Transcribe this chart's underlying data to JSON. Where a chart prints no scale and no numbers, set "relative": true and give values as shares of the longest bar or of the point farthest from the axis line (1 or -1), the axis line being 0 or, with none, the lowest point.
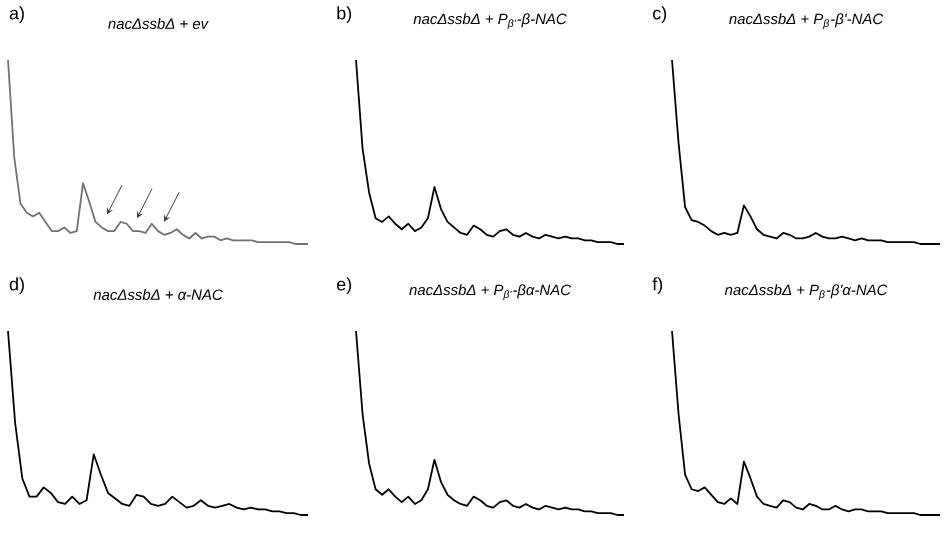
{
  "chart_data": [
    {
      "type": "line",
      "title": "nacΔssbΔ + ev",
      "annotations": [
        "a)"
      ],
      "relative": true,
      "color": "#707070",
      "categories": [
        null,
        null,
        null,
        null,
        null,
        null,
        null,
        null,
        null,
        null,
        null,
        null,
        null,
        null,
        null,
        null,
        null,
        null,
        null,
        null,
        null,
        null,
        null,
        null,
        null,
        null,
        null,
        null,
        null,
        null,
        null,
        null,
        null,
        null,
        null,
        null,
        null,
        null,
        null,
        null,
        null,
        null,
        null,
        null,
        null,
        null,
        null,
        null,
        null
      ],
      "values": [
        1.0,
        0.47,
        0.22,
        0.17,
        0.15,
        0.17,
        0.12,
        0.07,
        0.07,
        0.09,
        0.06,
        0.07,
        0.33,
        0.23,
        0.12,
        0.09,
        0.07,
        0.07,
        0.12,
        0.11,
        0.07,
        0.07,
        0.06,
        0.11,
        0.07,
        0.05,
        0.06,
        0.08,
        0.05,
        0.03,
        0.06,
        0.03,
        0.04,
        0.04,
        0.02,
        0.03,
        0.02,
        0.02,
        0.02,
        0.02,
        0.01,
        0.01,
        0.01,
        0.01,
        0.01,
        0.01,
        0.0,
        0.0,
        0.0
      ]
    },
    {
      "type": "line",
      "title": "nacΔssbΔ + P$_{β'}$-β-NAC",
      "annotations": [
        "b)"
      ],
      "relative": true,
      "color": "#000000",
      "categories": [
        null,
        null,
        null,
        null,
        null,
        null,
        null,
        null,
        null,
        null,
        null,
        null,
        null,
        null,
        null,
        null,
        null,
        null,
        null,
        null,
        null,
        null,
        null,
        null,
        null,
        null,
        null,
        null,
        null,
        null,
        null,
        null,
        null,
        null,
        null,
        null,
        null,
        null,
        null,
        null,
        null,
        null
      ],
      "values": [
        1.0,
        0.52,
        0.28,
        0.14,
        0.12,
        0.15,
        0.11,
        0.08,
        0.11,
        0.07,
        0.09,
        0.14,
        0.31,
        0.19,
        0.12,
        0.09,
        0.06,
        0.05,
        0.1,
        0.08,
        0.05,
        0.04,
        0.07,
        0.08,
        0.05,
        0.04,
        0.06,
        0.04,
        0.03,
        0.05,
        0.04,
        0.03,
        0.04,
        0.03,
        0.03,
        0.02,
        0.02,
        0.01,
        0.01,
        0.01,
        0.0,
        0.0
      ]
    },
    {
      "type": "line",
      "title": "nacΔssbΔ + P$_{β}$-β'-NAC",
      "annotations": [
        "c)"
      ],
      "relative": true,
      "color": "#000000",
      "categories": [
        null,
        null,
        null,
        null,
        null,
        null,
        null,
        null,
        null,
        null,
        null,
        null,
        null,
        null,
        null,
        null,
        null,
        null,
        null,
        null,
        null,
        null,
        null,
        null,
        null,
        null,
        null,
        null,
        null,
        null,
        null,
        null,
        null,
        null,
        null,
        null,
        null,
        null,
        null,
        null,
        null,
        null
      ],
      "values": [
        1.0,
        0.55,
        0.2,
        0.13,
        0.12,
        0.1,
        0.07,
        0.05,
        0.06,
        0.05,
        0.06,
        0.21,
        0.15,
        0.08,
        0.05,
        0.04,
        0.03,
        0.06,
        0.05,
        0.03,
        0.03,
        0.04,
        0.06,
        0.04,
        0.03,
        0.03,
        0.04,
        0.03,
        0.02,
        0.03,
        0.02,
        0.02,
        0.02,
        0.01,
        0.01,
        0.01,
        0.01,
        0.01,
        0.0,
        0.0,
        0.0,
        0.0
      ]
    },
    {
      "type": "line",
      "title": "nacΔssbΔ + α-NAC",
      "annotations": [
        "d)"
      ],
      "relative": true,
      "color": "#000000",
      "categories": [
        null,
        null,
        null,
        null,
        null,
        null,
        null,
        null,
        null,
        null,
        null,
        null,
        null,
        null,
        null,
        null,
        null,
        null,
        null,
        null,
        null,
        null,
        null,
        null,
        null,
        null,
        null,
        null,
        null,
        null,
        null,
        null,
        null,
        null,
        null,
        null,
        null,
        null,
        null,
        null,
        null,
        null,
        null
      ],
      "values": [
        1.0,
        0.5,
        0.2,
        0.1,
        0.1,
        0.15,
        0.12,
        0.07,
        0.06,
        0.1,
        0.06,
        0.08,
        0.33,
        0.22,
        0.12,
        0.09,
        0.06,
        0.05,
        0.11,
        0.1,
        0.06,
        0.05,
        0.06,
        0.1,
        0.07,
        0.04,
        0.05,
        0.08,
        0.05,
        0.04,
        0.05,
        0.06,
        0.04,
        0.03,
        0.04,
        0.03,
        0.03,
        0.02,
        0.02,
        0.01,
        0.01,
        0.0,
        0.0
      ]
    },
    {
      "type": "line",
      "title": "nacΔssbΔ + P$_{β'}$-βα-NAC",
      "annotations": [
        "e)"
      ],
      "relative": true,
      "color": "#000000",
      "categories": [
        null,
        null,
        null,
        null,
        null,
        null,
        null,
        null,
        null,
        null,
        null,
        null,
        null,
        null,
        null,
        null,
        null,
        null,
        null,
        null,
        null,
        null,
        null,
        null,
        null,
        null,
        null,
        null,
        null,
        null,
        null,
        null,
        null,
        null,
        null,
        null,
        null,
        null,
        null,
        null,
        null,
        null
      ],
      "values": [
        1.0,
        0.55,
        0.28,
        0.14,
        0.11,
        0.14,
        0.1,
        0.07,
        0.1,
        0.06,
        0.08,
        0.14,
        0.3,
        0.18,
        0.11,
        0.08,
        0.06,
        0.05,
        0.1,
        0.08,
        0.05,
        0.04,
        0.07,
        0.08,
        0.05,
        0.04,
        0.06,
        0.04,
        0.03,
        0.05,
        0.04,
        0.03,
        0.04,
        0.03,
        0.03,
        0.02,
        0.02,
        0.01,
        0.01,
        0.01,
        0.0,
        0.0
      ]
    },
    {
      "type": "line",
      "title": "nacΔssbΔ + P$_{β}$-β'α-NAC",
      "annotations": [
        "f)"
      ],
      "relative": true,
      "color": "#000000",
      "categories": [
        null,
        null,
        null,
        null,
        null,
        null,
        null,
        null,
        null,
        null,
        null,
        null,
        null,
        null,
        null,
        null,
        null,
        null,
        null,
        null,
        null,
        null,
        null,
        null,
        null,
        null,
        null,
        null,
        null,
        null,
        null,
        null,
        null,
        null,
        null,
        null,
        null,
        null,
        null,
        null,
        null,
        null
      ],
      "values": [
        1.0,
        0.55,
        0.22,
        0.14,
        0.13,
        0.15,
        0.11,
        0.07,
        0.06,
        0.09,
        0.06,
        0.29,
        0.2,
        0.1,
        0.06,
        0.05,
        0.04,
        0.08,
        0.07,
        0.04,
        0.03,
        0.06,
        0.05,
        0.03,
        0.03,
        0.05,
        0.03,
        0.02,
        0.03,
        0.03,
        0.02,
        0.02,
        0.02,
        0.01,
        0.01,
        0.01,
        0.01,
        0.01,
        0.0,
        0.0,
        0.0,
        0.0
      ]
    }
  ]
}
